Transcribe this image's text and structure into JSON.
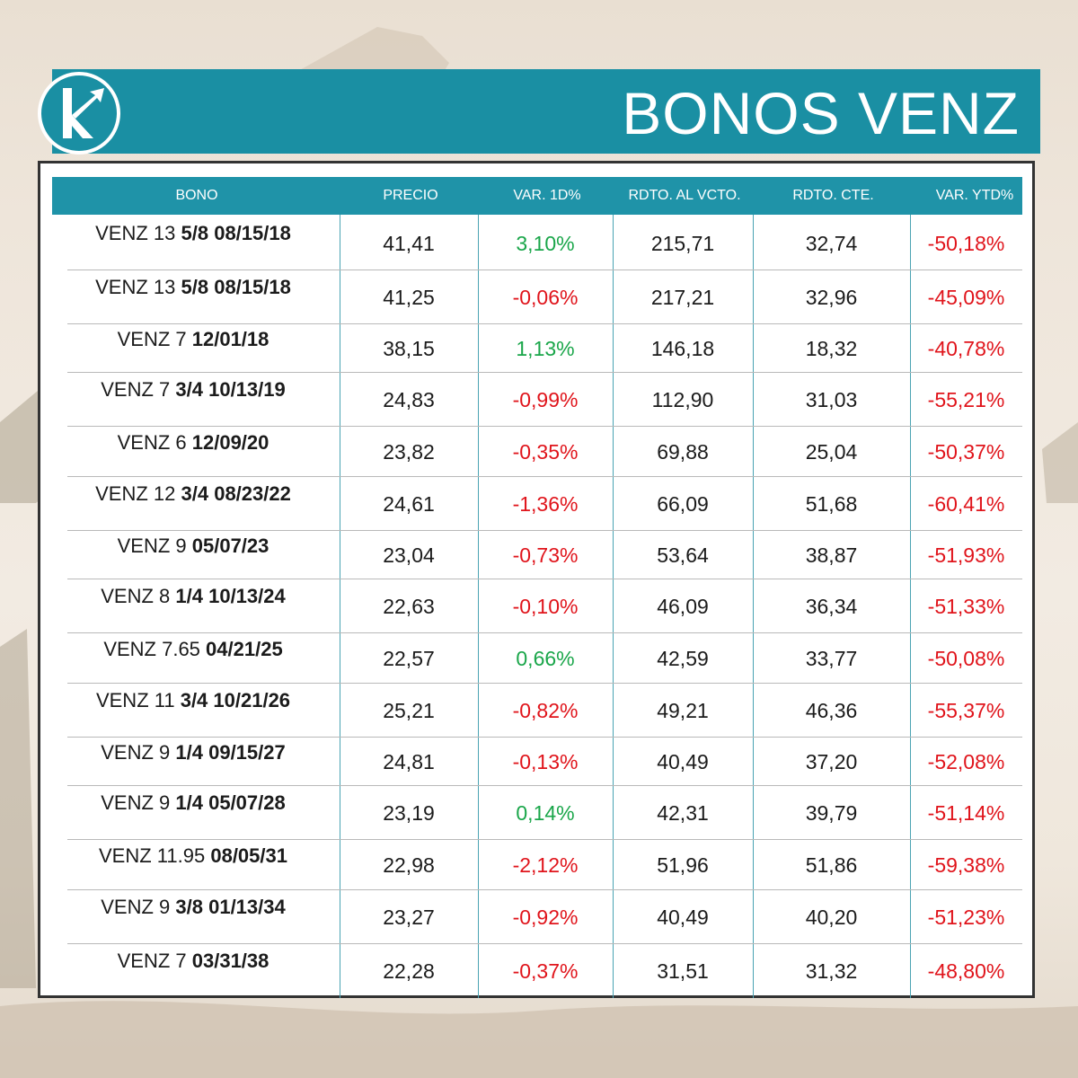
{
  "header": {
    "title": "BONOS VENZ",
    "bar_color": "#1a8fa3"
  },
  "colors": {
    "positive": "#1aa64a",
    "negative": "#e0141b",
    "header_bg": "#1f93a8"
  },
  "table": {
    "columns": [
      "BONO",
      "PRECIO",
      "VAR. 1D%",
      "RDTO. AL VCTO.",
      "RDTO. CTE.",
      "VAR. YTD%"
    ],
    "rows": [
      {
        "bono_prefix": "VENZ 13",
        "bono_suffix": "5/8 08/15/18",
        "precio": "41,41",
        "var1d": "3,10%",
        "var1d_sign": "pos",
        "rdto_vcto": "215,71",
        "rdto_cte": "32,74",
        "var_ytd": "-50,18%"
      },
      {
        "bono_prefix": "VENZ 13",
        "bono_suffix": "5/8 08/15/18",
        "precio": "41,25",
        "var1d": "-0,06%",
        "var1d_sign": "neg",
        "rdto_vcto": "217,21",
        "rdto_cte": "32,96",
        "var_ytd": "-45,09%"
      },
      {
        "bono_prefix": "VENZ 7",
        "bono_suffix": "12/01/18",
        "precio": "38,15",
        "var1d": "1,13%",
        "var1d_sign": "pos",
        "rdto_vcto": "146,18",
        "rdto_cte": "18,32",
        "var_ytd": "-40,78%"
      },
      {
        "bono_prefix": "VENZ 7",
        "bono_suffix": "3/4 10/13/19",
        "precio": "24,83",
        "var1d": "-0,99%",
        "var1d_sign": "neg",
        "rdto_vcto": "112,90",
        "rdto_cte": "31,03",
        "var_ytd": "-55,21%"
      },
      {
        "bono_prefix": "VENZ 6",
        "bono_suffix": "12/09/20",
        "precio": "23,82",
        "var1d": "-0,35%",
        "var1d_sign": "neg",
        "rdto_vcto": "69,88",
        "rdto_cte": "25,04",
        "var_ytd": "-50,37%"
      },
      {
        "bono_prefix": "VENZ 12",
        "bono_suffix": "3/4 08/23/22",
        "precio": "24,61",
        "var1d": "-1,36%",
        "var1d_sign": "neg",
        "rdto_vcto": "66,09",
        "rdto_cte": "51,68",
        "var_ytd": "-60,41%"
      },
      {
        "bono_prefix": "VENZ 9",
        "bono_suffix": "05/07/23",
        "precio": "23,04",
        "var1d": "-0,73%",
        "var1d_sign": "neg",
        "rdto_vcto": "53,64",
        "rdto_cte": "38,87",
        "var_ytd": "-51,93%"
      },
      {
        "bono_prefix": "VENZ 8",
        "bono_suffix": "1/4 10/13/24",
        "precio": "22,63",
        "var1d": "-0,10%",
        "var1d_sign": "neg",
        "rdto_vcto": "46,09",
        "rdto_cte": "36,34",
        "var_ytd": "-51,33%"
      },
      {
        "bono_prefix": "VENZ 7.65",
        "bono_suffix": "04/21/25",
        "precio": "22,57",
        "var1d": "0,66%",
        "var1d_sign": "pos",
        "rdto_vcto": "42,59",
        "rdto_cte": "33,77",
        "var_ytd": "-50,08%"
      },
      {
        "bono_prefix": "VENZ 11",
        "bono_suffix": "3/4 10/21/26",
        "precio": "25,21",
        "var1d": "-0,82%",
        "var1d_sign": "neg",
        "rdto_vcto": "49,21",
        "rdto_cte": "46,36",
        "var_ytd": "-55,37%"
      },
      {
        "bono_prefix": "VENZ 9",
        "bono_suffix": "1/4 09/15/27",
        "precio": "24,81",
        "var1d": "-0,13%",
        "var1d_sign": "neg",
        "rdto_vcto": "40,49",
        "rdto_cte": "37,20",
        "var_ytd": "-52,08%"
      },
      {
        "bono_prefix": "VENZ 9",
        "bono_suffix": "1/4 05/07/28",
        "precio": "23,19",
        "var1d": "0,14%",
        "var1d_sign": "pos",
        "rdto_vcto": "42,31",
        "rdto_cte": "39,79",
        "var_ytd": "-51,14%"
      },
      {
        "bono_prefix": "VENZ 11.95",
        "bono_suffix": "08/05/31",
        "precio": "22,98",
        "var1d": "-2,12%",
        "var1d_sign": "neg",
        "rdto_vcto": "51,96",
        "rdto_cte": "51,86",
        "var_ytd": "-59,38%"
      },
      {
        "bono_prefix": "VENZ 9",
        "bono_suffix": "3/8 01/13/34",
        "precio": "23,27",
        "var1d": "-0,92%",
        "var1d_sign": "neg",
        "rdto_vcto": "40,49",
        "rdto_cte": "40,20",
        "var_ytd": "-51,23%"
      },
      {
        "bono_prefix": "VENZ 7",
        "bono_suffix": "03/31/38",
        "precio": "22,28",
        "var1d": "-0,37%",
        "var1d_sign": "neg",
        "rdto_vcto": "31,51",
        "rdto_cte": "31,32",
        "var_ytd": "-48,80%"
      }
    ]
  }
}
